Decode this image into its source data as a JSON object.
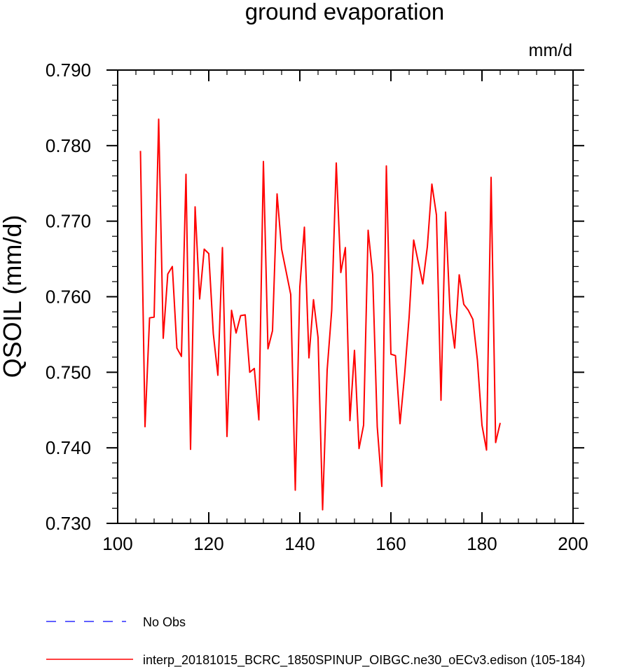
{
  "chart_data": {
    "type": "line",
    "title": "ground evaporation",
    "units": "mm/d",
    "ylabel": "QSOIL  (mm/d)",
    "xlabel": "",
    "xlim": [
      100,
      200
    ],
    "ylim": [
      0.73,
      0.79
    ],
    "x_ticks": [
      100,
      120,
      140,
      160,
      180,
      200
    ],
    "y_ticks": [
      0.73,
      0.74,
      0.75,
      0.76,
      0.77,
      0.78,
      0.79
    ],
    "x_tick_labels": [
      "100",
      "120",
      "140",
      "160",
      "180",
      "200"
    ],
    "y_tick_labels": [
      "0.730",
      "0.740",
      "0.750",
      "0.760",
      "0.770",
      "0.780",
      "0.790"
    ],
    "legend_position": "bottom",
    "series": [
      {
        "name": "interp_20181015_BCRC_1850SPINUP_OIBGC.ne30_oECv3.edison (105-184)",
        "color": "#ff0000",
        "x": [
          105,
          106,
          107,
          108,
          109,
          110,
          111,
          112,
          113,
          114,
          115,
          116,
          117,
          118,
          119,
          120,
          121,
          122,
          123,
          124,
          125,
          126,
          127,
          128,
          129,
          130,
          131,
          132,
          133,
          134,
          135,
          136,
          137,
          138,
          139,
          140,
          141,
          142,
          143,
          144,
          145,
          146,
          147,
          148,
          149,
          150,
          151,
          152,
          153,
          154,
          155,
          156,
          157,
          158,
          159,
          160,
          161,
          162,
          163,
          164,
          165,
          166,
          167,
          168,
          169,
          170,
          171,
          172,
          173,
          174,
          175,
          176,
          177,
          178,
          179,
          180,
          181,
          182,
          183,
          184
        ],
        "values": [
          0.7793,
          0.7428,
          0.7572,
          0.7573,
          0.7835,
          0.7545,
          0.763,
          0.764,
          0.7532,
          0.7521,
          0.7762,
          0.7398,
          0.7719,
          0.7597,
          0.7663,
          0.7657,
          0.7551,
          0.7496,
          0.7665,
          0.7415,
          0.7582,
          0.7552,
          0.7575,
          0.7576,
          0.75,
          0.7505,
          0.7437,
          0.7779,
          0.7531,
          0.7555,
          0.7736,
          0.7663,
          0.7633,
          0.7603,
          0.7344,
          0.7613,
          0.7692,
          0.7519,
          0.7596,
          0.7546,
          0.7318,
          0.7503,
          0.7582,
          0.7777,
          0.7632,
          0.7665,
          0.7436,
          0.7529,
          0.7399,
          0.743,
          0.7688,
          0.7629,
          0.7428,
          0.7349,
          0.7773,
          0.7524,
          0.7522,
          0.7432,
          0.7496,
          0.7573,
          0.7675,
          0.7646,
          0.7617,
          0.7666,
          0.7749,
          0.7708,
          0.7463,
          0.7712,
          0.7578,
          0.7532,
          0.7629,
          0.759,
          0.7582,
          0.757,
          0.7516,
          0.743,
          0.7397,
          0.7758,
          0.7407,
          0.7433
        ]
      }
    ],
    "legend": [
      {
        "label": "No Obs",
        "color": "#0000ff",
        "dash": "dashed"
      },
      {
        "label": "interp_20181015_BCRC_1850SPINUP_OIBGC.ne30_oECv3.edison (105-184)",
        "color": "#ff0000",
        "dash": "solid"
      }
    ]
  }
}
